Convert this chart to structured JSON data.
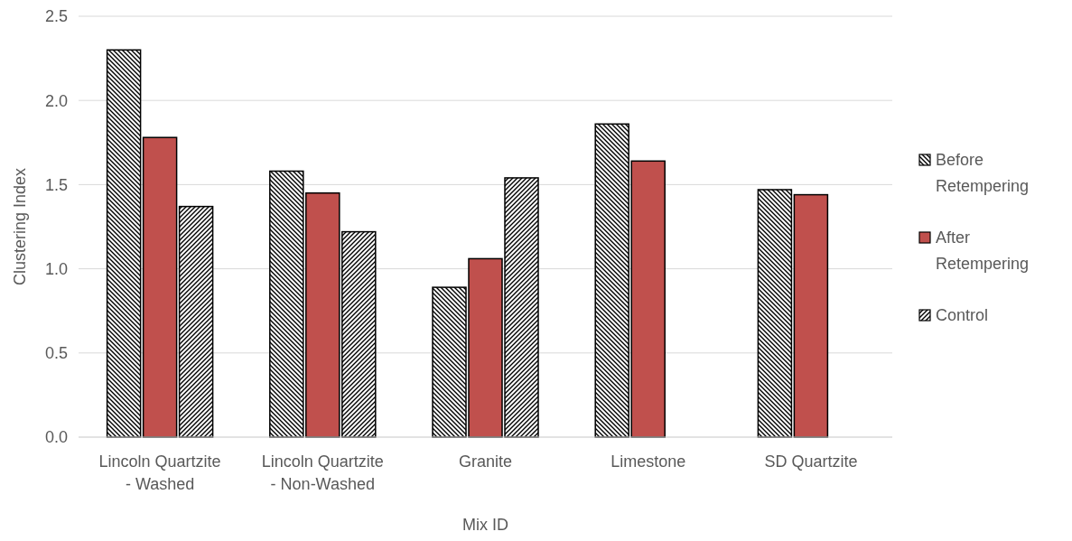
{
  "chart_data": {
    "type": "bar",
    "xlabel": "Mix ID",
    "ylabel": "Clustering Index",
    "categories": [
      "Lincoln Quartzite - Washed",
      "Lincoln Quartzite - Non-Washed",
      "Granite",
      "Limestone",
      "SD Quartzite"
    ],
    "series": [
      {
        "name": "Before Retempering",
        "color": "#000000",
        "values": [
          2.3,
          1.58,
          0.89,
          1.86,
          1.47
        ]
      },
      {
        "name": "After Retempering",
        "color": "#c0504d",
        "values": [
          1.78,
          1.45,
          1.06,
          1.64,
          1.44
        ]
      },
      {
        "name": "Control",
        "color": "#000000",
        "values": [
          1.37,
          1.22,
          1.54,
          null,
          null
        ]
      }
    ],
    "ylim": [
      0,
      2.5
    ],
    "yticks": [
      {
        "value": 0,
        "label": "0.0"
      },
      {
        "value": 0.5,
        "label": "0.5"
      },
      {
        "value": 1,
        "label": "1.0"
      },
      {
        "value": 1.5,
        "label": "1.5"
      },
      {
        "value": 2,
        "label": "2.0"
      },
      {
        "value": 2.5,
        "label": "2.5"
      }
    ],
    "grid": "y",
    "legend": "right"
  }
}
